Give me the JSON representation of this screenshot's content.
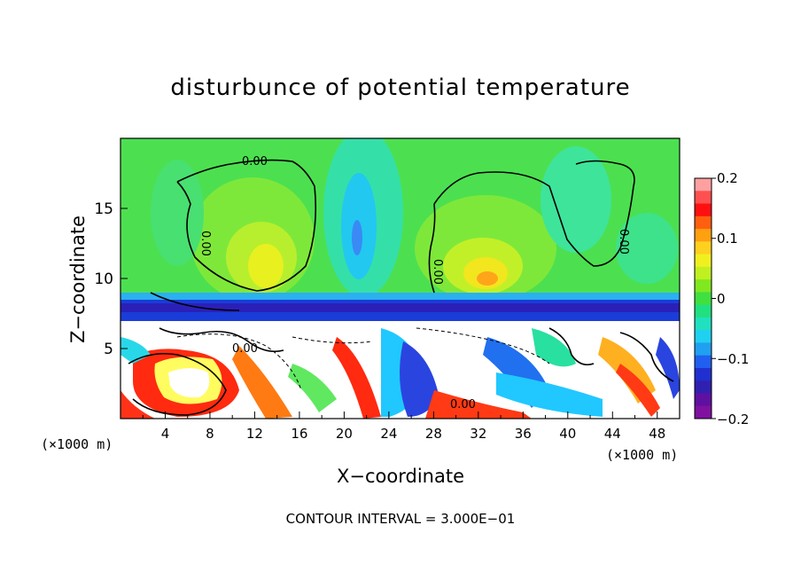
{
  "chart_data": {
    "type": "heatmap",
    "title": "disturbunce of potential temperature",
    "xlabel": "X−coordinate",
    "ylabel": "Z−coordinate",
    "x_unit": "(×1000 m)",
    "z_unit": "(×1000 m)",
    "x_ticks": [
      "4",
      "8",
      "12",
      "16",
      "20",
      "24",
      "28",
      "32",
      "36",
      "40",
      "44",
      "48"
    ],
    "y_ticks": [
      "5",
      "10",
      "15"
    ],
    "xlim": [
      0,
      50
    ],
    "ylim": [
      0,
      20
    ],
    "colorbar_ticks": [
      "0.2",
      "0.1",
      "0",
      "−0.1",
      "−0.2"
    ],
    "colorbar_range": [
      -0.2,
      0.2
    ],
    "contour_label": "0.00",
    "contour_interval_text": "CONTOUR INTERVAL = 3.000E−01"
  }
}
